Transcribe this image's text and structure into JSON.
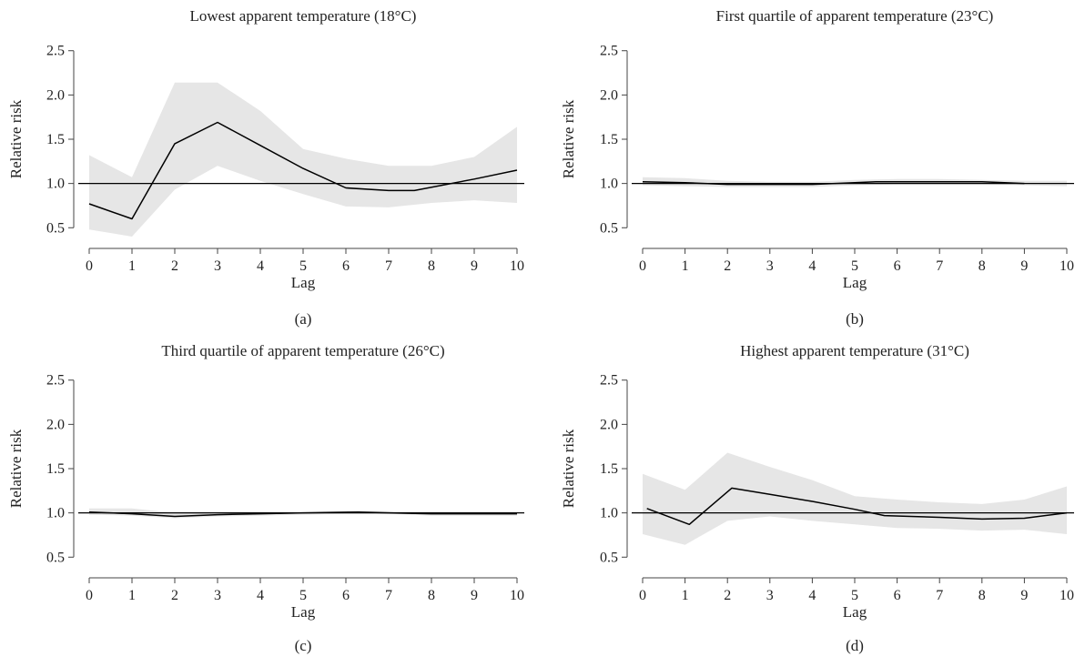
{
  "chart_data": [
    {
      "type": "line",
      "panel_label": "(a)",
      "title": "Lowest apparent temperature (18°C)",
      "xlabel": "Lag",
      "ylabel": "Relative risk",
      "xlim": [
        0,
        10
      ],
      "ylim": [
        0.4,
        2.6
      ],
      "xticks": [
        0,
        1,
        2,
        3,
        4,
        5,
        6,
        7,
        8,
        9,
        10
      ],
      "yticks": [
        0.5,
        1.0,
        1.5,
        2.0,
        2.5
      ],
      "reference_line": 1.0,
      "estimate": {
        "x": [
          0,
          1,
          2,
          3,
          4,
          5,
          6,
          7,
          7.6,
          9,
          10
        ],
        "y": [
          0.77,
          0.6,
          1.45,
          1.69,
          1.43,
          1.17,
          0.95,
          0.92,
          0.92,
          1.05,
          1.15
        ]
      },
      "ci_upper": {
        "x": [
          0,
          1,
          2,
          3,
          4,
          5,
          6,
          7,
          8,
          9,
          10
        ],
        "y": [
          1.32,
          1.07,
          2.14,
          2.14,
          1.82,
          1.39,
          1.28,
          1.2,
          1.2,
          1.3,
          1.64
        ]
      },
      "ci_lower": {
        "x": [
          0,
          1,
          2,
          3,
          4,
          5,
          6,
          7,
          8,
          9,
          10
        ],
        "y": [
          0.48,
          0.4,
          0.93,
          1.2,
          1.03,
          0.88,
          0.74,
          0.73,
          0.78,
          0.81,
          0.78
        ]
      }
    },
    {
      "type": "line",
      "panel_label": "(b)",
      "title": "First quartile of apparent temperature (23°C)",
      "xlabel": "Lag",
      "ylabel": "Relative risk",
      "xlim": [
        0,
        10
      ],
      "ylim": [
        0.4,
        2.6
      ],
      "xticks": [
        0,
        1,
        2,
        3,
        4,
        5,
        6,
        7,
        8,
        9,
        10
      ],
      "yticks": [
        0.5,
        1.0,
        1.5,
        2.0,
        2.5
      ],
      "reference_line": 1.0,
      "estimate": {
        "x": [
          0,
          1,
          2,
          3,
          4,
          5,
          5.5,
          7,
          8,
          9
        ],
        "y": [
          1.02,
          1.01,
          0.99,
          0.99,
          0.99,
          1.01,
          1.02,
          1.02,
          1.02,
          1.0
        ]
      },
      "ci_upper": {
        "x": [
          0,
          1,
          2,
          3,
          4,
          5,
          6,
          7,
          8,
          9,
          10
        ],
        "y": [
          1.07,
          1.06,
          1.03,
          1.02,
          1.02,
          1.04,
          1.05,
          1.05,
          1.04,
          1.03,
          1.03
        ]
      },
      "ci_lower": {
        "x": [
          0,
          1,
          2,
          3,
          4,
          5,
          6,
          7,
          8,
          9,
          10
        ],
        "y": [
          0.98,
          0.97,
          0.96,
          0.96,
          0.96,
          0.98,
          0.99,
          0.99,
          0.99,
          0.98,
          0.97
        ]
      }
    },
    {
      "type": "line",
      "panel_label": "(c)",
      "title": "Third quartile of apparent temperature (26°C)",
      "xlabel": "Lag",
      "ylabel": "Relative risk",
      "xlim": [
        0,
        10
      ],
      "ylim": [
        0.4,
        2.6
      ],
      "xticks": [
        0,
        1,
        2,
        3,
        4,
        5,
        6,
        7,
        8,
        9,
        10
      ],
      "yticks": [
        0.5,
        1.0,
        1.5,
        2.0,
        2.5
      ],
      "reference_line": 1.0,
      "estimate": {
        "x": [
          0,
          1,
          2,
          3,
          4,
          5,
          6.3,
          7,
          8,
          9,
          10
        ],
        "y": [
          1.01,
          0.99,
          0.96,
          0.98,
          0.99,
          1.0,
          1.01,
          1.0,
          0.99,
          0.99,
          0.99
        ]
      },
      "ci_upper": {
        "x": [
          0,
          1,
          2,
          3,
          4,
          5,
          6,
          7,
          8,
          9,
          10
        ],
        "y": [
          1.05,
          1.05,
          1.0,
          1.0,
          1.01,
          1.01,
          1.02,
          1.02,
          1.01,
          1.01,
          1.01
        ]
      },
      "ci_lower": {
        "x": [
          0,
          1,
          2,
          3,
          4,
          5,
          6,
          7,
          8,
          9,
          10
        ],
        "y": [
          0.98,
          0.97,
          0.94,
          0.96,
          0.97,
          0.98,
          0.99,
          0.99,
          0.97,
          0.97,
          0.97
        ]
      }
    },
    {
      "type": "line",
      "panel_label": "(d)",
      "title": "Highest apparent temperature (31°C)",
      "xlabel": "Lag",
      "ylabel": "Relative risk",
      "xlim": [
        0,
        10
      ],
      "ylim": [
        0.4,
        2.6
      ],
      "xticks": [
        0,
        1,
        2,
        3,
        4,
        5,
        6,
        7,
        8,
        9,
        10
      ],
      "yticks": [
        0.5,
        1.0,
        1.5,
        2.0,
        2.5
      ],
      "reference_line": 1.0,
      "estimate": {
        "x": [
          0.1,
          1.1,
          2.1,
          3,
          4,
          5,
          5.7,
          7,
          8,
          9,
          10
        ],
        "y": [
          1.05,
          0.87,
          1.28,
          1.21,
          1.13,
          1.04,
          0.97,
          0.95,
          0.93,
          0.94,
          1.0
        ]
      },
      "ci_upper": {
        "x": [
          0,
          1,
          2,
          3,
          4,
          5,
          6,
          7,
          8,
          9,
          10
        ],
        "y": [
          1.44,
          1.26,
          1.68,
          1.52,
          1.37,
          1.19,
          1.15,
          1.12,
          1.1,
          1.15,
          1.3
        ]
      },
      "ci_lower": {
        "x": [
          0,
          1,
          2,
          3,
          4,
          5,
          6,
          7,
          8,
          9,
          10
        ],
        "y": [
          0.76,
          0.64,
          0.91,
          0.96,
          0.91,
          0.87,
          0.83,
          0.82,
          0.8,
          0.81,
          0.76
        ]
      }
    }
  ],
  "colors": {
    "ci_band": "#e6e6e6",
    "estimate_line": "#000000",
    "reference_line": "#000000",
    "axis": "#444444",
    "text": "#222222"
  }
}
